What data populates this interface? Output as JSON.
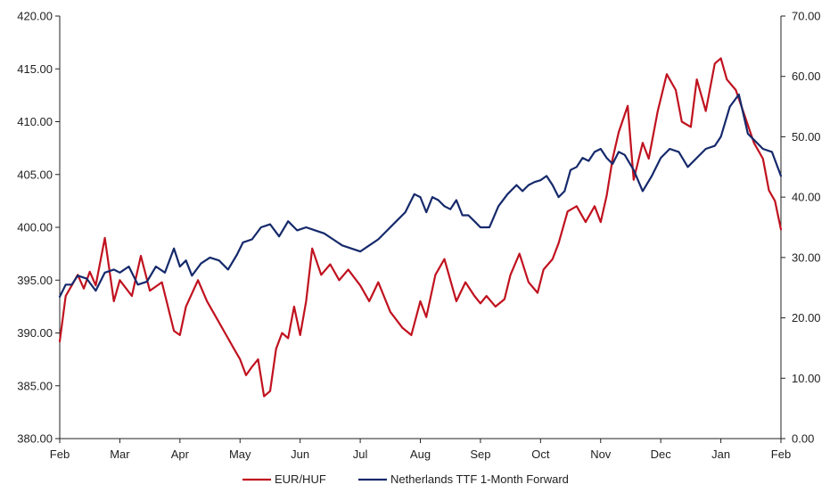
{
  "chart_data": {
    "type": "line",
    "title": "",
    "xlabel": "",
    "ylabel_left": "",
    "ylabel_right": "",
    "x_tick_labels": [
      "Feb",
      "Mar",
      "Apr",
      "May",
      "Jun",
      "Jul",
      "Aug",
      "Sep",
      "Oct",
      "Nov",
      "Dec",
      "Jan",
      "Feb"
    ],
    "y_left": {
      "ylim": [
        380,
        420
      ],
      "ticks": [
        380,
        385,
        390,
        395,
        400,
        405,
        410,
        415,
        420
      ],
      "tick_labels": [
        "380.00",
        "385.00",
        "390.00",
        "395.00",
        "400.00",
        "405.00",
        "410.00",
        "415.00",
        "420.00"
      ]
    },
    "y_right": {
      "ylim": [
        0,
        70
      ],
      "ticks": [
        0,
        10,
        20,
        30,
        40,
        50,
        60,
        70
      ],
      "tick_labels": [
        "0.00",
        "10.00",
        "20.00",
        "30.00",
        "40.00",
        "50.00",
        "60.00",
        "70.00"
      ]
    },
    "grid": false,
    "legend_position": "bottom-center",
    "series": [
      {
        "name": "EUR/HUF",
        "axis": "left",
        "color": "#c0121f",
        "x": [
          0,
          0.1,
          0.2,
          0.3,
          0.4,
          0.5,
          0.6,
          0.75,
          0.9,
          1.0,
          1.2,
          1.35,
          1.5,
          1.7,
          1.9,
          2.0,
          2.1,
          2.3,
          2.45,
          2.6,
          2.75,
          2.9,
          3.0,
          3.1,
          3.2,
          3.3,
          3.4,
          3.5,
          3.6,
          3.7,
          3.8,
          3.9,
          4.0,
          4.1,
          4.2,
          4.35,
          4.5,
          4.65,
          4.8,
          5.0,
          5.15,
          5.3,
          5.5,
          5.7,
          5.85,
          6.0,
          6.1,
          6.25,
          6.4,
          6.6,
          6.75,
          6.9,
          7.0,
          7.1,
          7.25,
          7.4,
          7.5,
          7.65,
          7.8,
          7.95,
          8.05,
          8.2,
          8.3,
          8.45,
          8.6,
          8.75,
          8.9,
          9.0,
          9.1,
          9.2,
          9.3,
          9.45,
          9.55,
          9.7,
          9.8,
          9.95,
          10.1,
          10.25,
          10.35,
          10.5,
          10.6,
          10.75,
          10.9,
          11.0,
          11.1,
          11.25,
          11.4,
          11.55,
          11.7,
          11.8,
          11.9,
          12.0
        ],
        "y": [
          389.2,
          393.5,
          394.5,
          395.5,
          394.2,
          395.8,
          394.5,
          399.0,
          393.0,
          395.0,
          393.5,
          397.3,
          394.0,
          394.8,
          390.2,
          389.8,
          392.5,
          395.0,
          393.0,
          391.5,
          390.0,
          388.5,
          387.5,
          386.0,
          386.8,
          387.5,
          384.0,
          384.5,
          388.5,
          390.0,
          389.5,
          392.5,
          389.8,
          393.0,
          398.0,
          395.5,
          396.5,
          395.0,
          396.0,
          394.5,
          393.0,
          394.8,
          392.0,
          390.5,
          389.8,
          393.0,
          391.5,
          395.5,
          397.0,
          393.0,
          394.8,
          393.5,
          392.8,
          393.5,
          392.5,
          393.2,
          395.5,
          397.5,
          394.8,
          393.8,
          396.0,
          397.0,
          398.5,
          401.5,
          402.0,
          400.5,
          402.0,
          400.5,
          403.0,
          406.5,
          409.0,
          411.5,
          404.5,
          408.0,
          406.5,
          411.0,
          414.5,
          413.0,
          410.0,
          409.5,
          414.0,
          411.0,
          415.5,
          416.0,
          414.0,
          413.0,
          410.5,
          408.0,
          406.5,
          403.5,
          402.5,
          399.8
        ]
      },
      {
        "name": "Netherlands TTF 1-Month Forward",
        "axis": "right",
        "color": "#15296b",
        "x": [
          0,
          0.1,
          0.2,
          0.3,
          0.45,
          0.6,
          0.75,
          0.9,
          1.0,
          1.15,
          1.3,
          1.45,
          1.6,
          1.75,
          1.9,
          2.0,
          2.1,
          2.2,
          2.35,
          2.5,
          2.65,
          2.8,
          2.95,
          3.05,
          3.2,
          3.35,
          3.5,
          3.65,
          3.8,
          3.95,
          4.1,
          4.25,
          4.4,
          4.55,
          4.7,
          4.85,
          5.0,
          5.15,
          5.3,
          5.45,
          5.6,
          5.75,
          5.9,
          6.0,
          6.1,
          6.2,
          6.3,
          6.4,
          6.5,
          6.6,
          6.7,
          6.8,
          6.9,
          7.0,
          7.15,
          7.3,
          7.45,
          7.6,
          7.7,
          7.8,
          7.9,
          8.0,
          8.1,
          8.2,
          8.3,
          8.4,
          8.5,
          8.6,
          8.7,
          8.8,
          8.9,
          9.0,
          9.1,
          9.2,
          9.3,
          9.4,
          9.55,
          9.7,
          9.85,
          10.0,
          10.15,
          10.3,
          10.45,
          10.6,
          10.75,
          10.9,
          11.0,
          11.15,
          11.3,
          11.45,
          11.55,
          11.7,
          11.85,
          12.0
        ],
        "y": [
          23.5,
          25.5,
          25.5,
          27.0,
          26.5,
          24.5,
          27.5,
          28.0,
          27.5,
          28.5,
          25.5,
          26.0,
          28.5,
          27.5,
          31.5,
          28.5,
          29.5,
          27.0,
          29.0,
          30.0,
          29.5,
          28.0,
          30.5,
          32.5,
          33.0,
          35.0,
          35.5,
          33.5,
          36.0,
          34.5,
          35.0,
          34.5,
          34.0,
          33.0,
          32.0,
          31.5,
          31.0,
          32.0,
          33.0,
          34.5,
          36.0,
          37.5,
          40.5,
          40.0,
          37.5,
          40.0,
          39.5,
          38.5,
          38.0,
          39.5,
          37.0,
          37.0,
          36.0,
          35.0,
          35.0,
          38.5,
          40.5,
          42.0,
          41.0,
          42.0,
          42.5,
          42.8,
          43.5,
          42.0,
          40.0,
          41.0,
          44.5,
          45.0,
          46.5,
          46.0,
          47.5,
          48.0,
          46.5,
          45.5,
          47.5,
          47.0,
          44.5,
          41.0,
          43.5,
          46.5,
          48.0,
          47.5,
          45.0,
          46.5,
          48.0,
          48.5,
          50.0,
          55.0,
          57.0,
          50.5,
          49.5,
          48.0,
          47.5,
          43.5
        ]
      }
    ]
  }
}
